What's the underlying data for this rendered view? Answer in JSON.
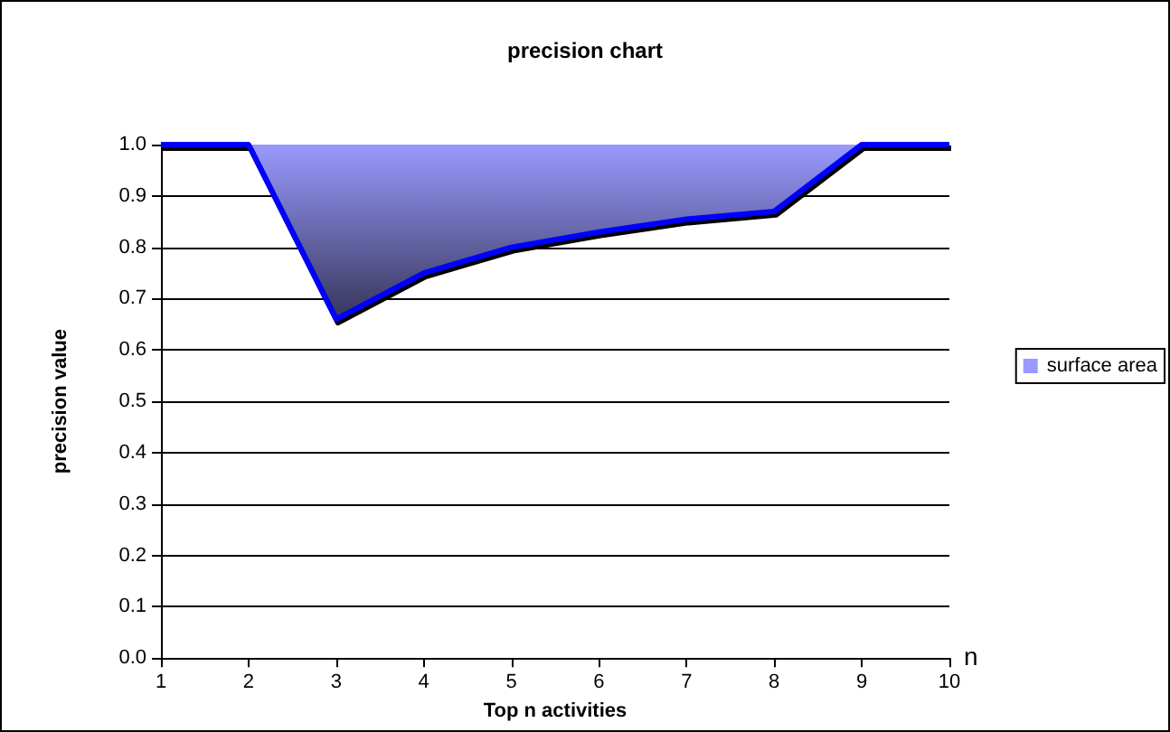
{
  "chart_data": {
    "type": "area",
    "title": "precision chart",
    "xlabel": "Top n activities",
    "ylabel": "precision value",
    "categories": [
      "1",
      "2",
      "3",
      "4",
      "5",
      "6",
      "7",
      "8",
      "9",
      "10"
    ],
    "series": [
      {
        "name": "surface area",
        "color": "#9999ff",
        "values": [
          1,
          1,
          0.66,
          0.75,
          0.8,
          0.83,
          0.855,
          0.87,
          1,
          1
        ]
      }
    ],
    "ylim": [
      0,
      1
    ],
    "yticks": [
      {
        "value": 0,
        "label": "0.0"
      },
      0.1,
      0.2,
      0.3,
      0.4,
      0.5,
      0.6,
      0.7,
      0.8,
      0.9,
      {
        "value": 1,
        "label": "1.0"
      }
    ],
    "grid": "y",
    "legend": "right",
    "annotations": [
      "n"
    ]
  }
}
